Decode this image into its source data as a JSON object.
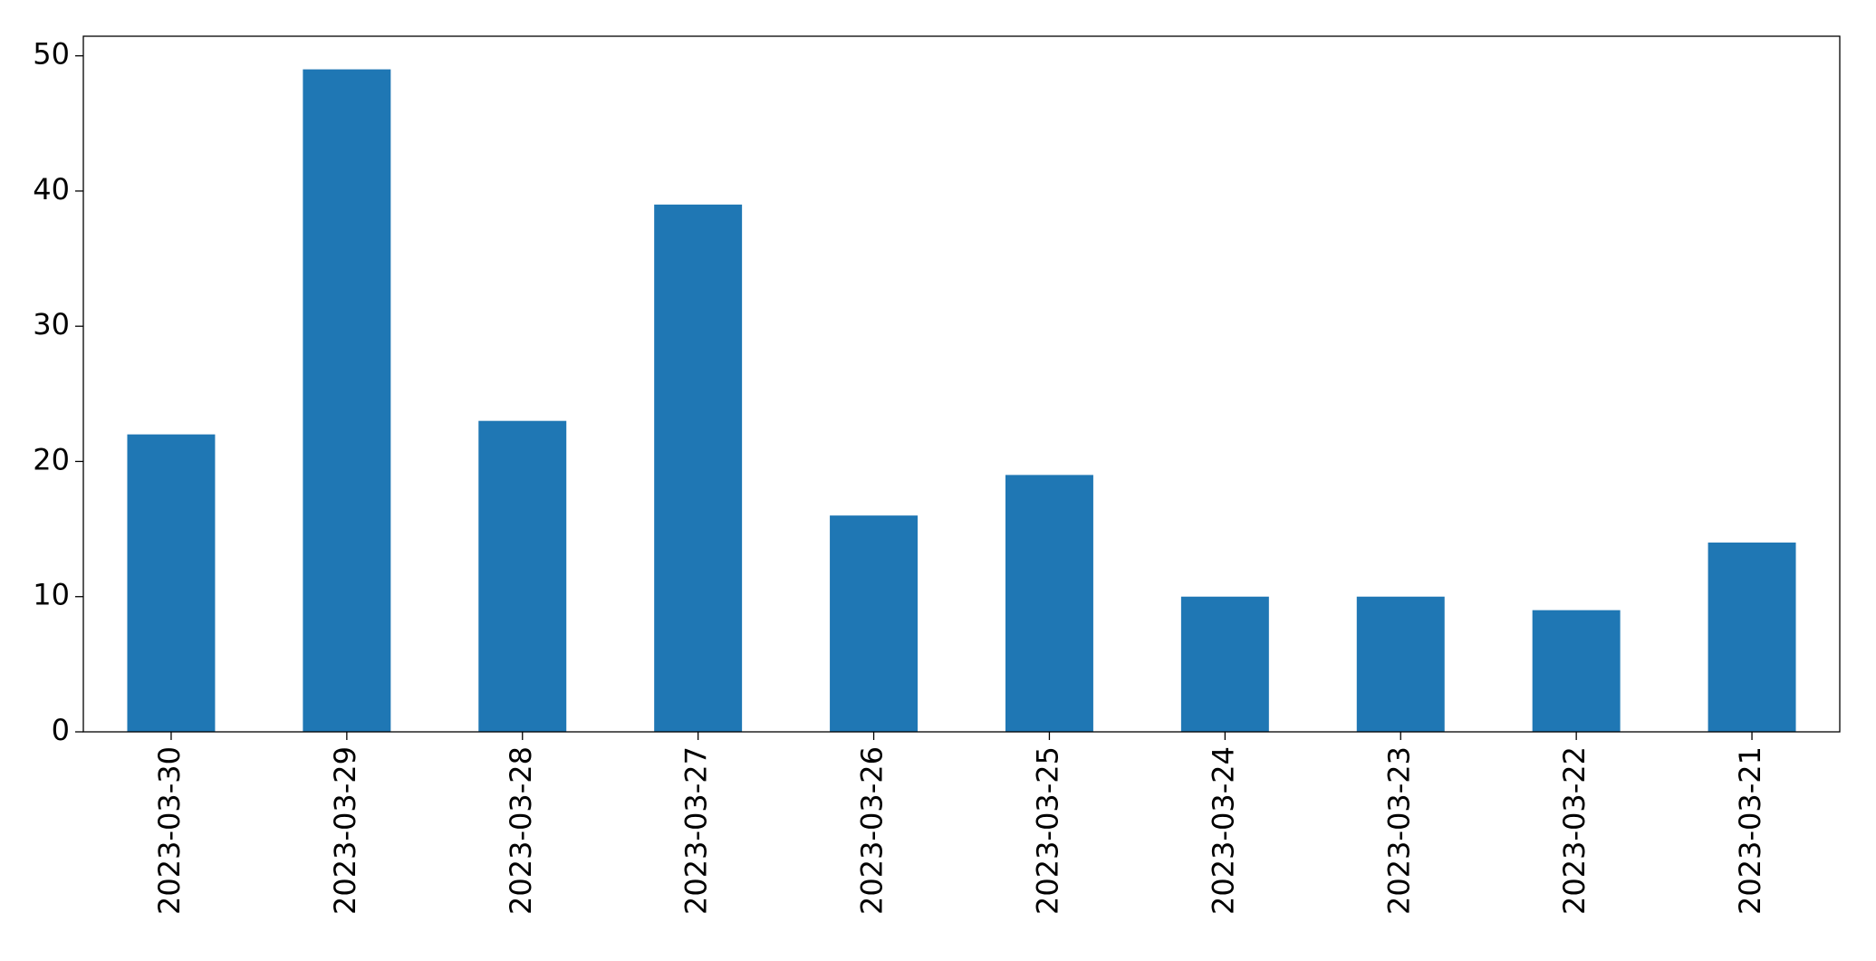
{
  "chart_data": {
    "type": "bar",
    "categories": [
      "2023-03-30",
      "2023-03-29",
      "2023-03-28",
      "2023-03-27",
      "2023-03-26",
      "2023-03-25",
      "2023-03-24",
      "2023-03-23",
      "2023-03-22",
      "2023-03-21"
    ],
    "values": [
      22,
      49,
      23,
      39,
      16,
      19,
      10,
      10,
      9,
      14
    ],
    "color": "#1f77b4",
    "ylim": [
      0,
      51.45
    ],
    "yticks": [
      0,
      10,
      20,
      30,
      40,
      50
    ]
  }
}
